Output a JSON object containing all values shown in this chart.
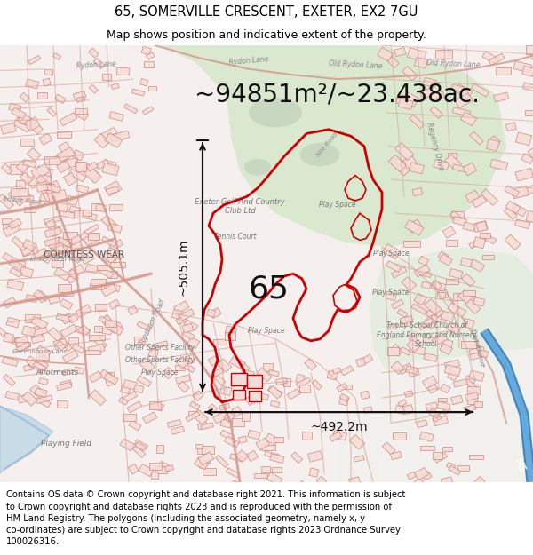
{
  "title_line1": "65, SOMERVILLE CRESCENT, EXETER, EX2 7GU",
  "title_line2": "Map shows position and indicative extent of the property.",
  "area_text": "~94851m²/~23.438ac.",
  "dim_vertical": "~505.1m",
  "dim_horizontal": "~492.2m",
  "label_number": "65",
  "footer_text": "Contains OS data © Crown copyright and database right 2021. This information is subject to Crown copyright and database rights 2023 and is reproduced with the permission of HM Land Registry. The polygons (including the associated geometry, namely x, y co-ordinates) are subject to Crown copyright and database rights 2023 Ordnance Survey 100026316.",
  "title_fontsize": 10.5,
  "subtitle_fontsize": 9,
  "area_fontsize": 20,
  "dim_fontsize": 10,
  "label_fontsize": 26,
  "footer_fontsize": 7.2,
  "title_bg": "#ffffff",
  "footer_bg": "#ffffff",
  "map_bg": "#f5f0ee",
  "green1_color": "#dce8d4",
  "green2_color": "#e0ead8",
  "road_color": "#d4968a",
  "building_fill": "#f5dcd8",
  "building_edge": "#c87870",
  "property_fill": "none",
  "property_edge": "#cc0000",
  "arrow_color": "#111111",
  "label_color": "#111111",
  "river_color": "#aaccee",
  "motorway_color": "#5599cc"
}
